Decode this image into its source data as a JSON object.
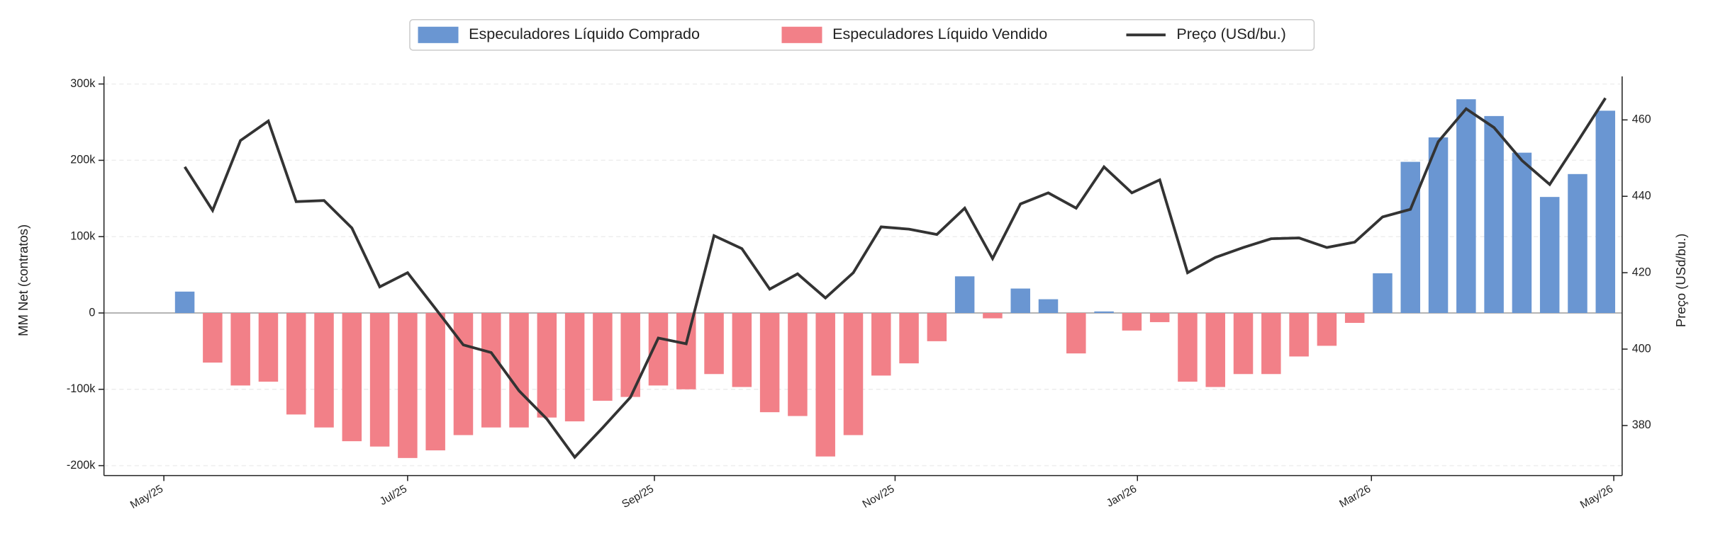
{
  "chart_data": {
    "type": "bar-line",
    "y_label": "MM Net (contratos)",
    "y2_label": "Preço (USd/bu.)",
    "categories": [
      null,
      null,
      null,
      null,
      null,
      null,
      null,
      null,
      null,
      null,
      null,
      null,
      null,
      null,
      null,
      null,
      null,
      null,
      null,
      null,
      null,
      null,
      null,
      null,
      null,
      null,
      null,
      null,
      null,
      null,
      null,
      null,
      null,
      null,
      null,
      null,
      null,
      null,
      null,
      null,
      null,
      null,
      null,
      null,
      null,
      null,
      null,
      null,
      null,
      null,
      null,
      null
    ],
    "xlim": [
      -2.9,
      51.6
    ],
    "xticks": [
      {
        "value": -0.75,
        "label": "May/25"
      },
      {
        "value": 8.0,
        "label": "Jul/25"
      },
      {
        "value": 16.86,
        "label": "Sep/25"
      },
      {
        "value": 25.5,
        "label": "Nov/25"
      },
      {
        "value": 34.2,
        "label": "Jan/26"
      },
      {
        "value": 42.6,
        "label": "Mar/26"
      },
      {
        "value": 51.3,
        "label": "May/26"
      }
    ],
    "ylim": [
      -213000,
      310000
    ],
    "yticks": [
      {
        "value": -200000,
        "label": "-200k"
      },
      {
        "value": -100000,
        "label": "-100k"
      },
      0,
      {
        "value": 100000,
        "label": "100k"
      },
      {
        "value": 200000,
        "label": "200k"
      },
      {
        "value": 300000,
        "label": "300k"
      }
    ],
    "y2lim": [
      366.9,
      471.4
    ],
    "y2ticks": [
      380,
      400,
      420,
      440,
      460
    ],
    "grid": true,
    "legend": "top",
    "series": [
      {
        "name": "Especuladores Líquido Comprado",
        "color": "#6a96d2",
        "kind": "bar",
        "values": [
          28000,
          null,
          null,
          null,
          null,
          null,
          null,
          null,
          null,
          null,
          null,
          null,
          null,
          null,
          null,
          null,
          null,
          null,
          null,
          null,
          null,
          null,
          null,
          null,
          null,
          null,
          null,
          null,
          48000,
          null,
          32000,
          18000,
          null,
          2000,
          null,
          null,
          null,
          null,
          null,
          null,
          null,
          null,
          null,
          52000,
          198000,
          230000,
          280000,
          258000,
          210000,
          152000,
          182000,
          265000
        ]
      },
      {
        "name": "Especuladores Líquido Vendido",
        "color": "#f28088",
        "kind": "bar",
        "values": [
          null,
          -65000,
          -95000,
          -90000,
          -133000,
          -150000,
          -168000,
          -175000,
          -190000,
          -180000,
          -160000,
          -150000,
          -150000,
          -137000,
          -142000,
          -115000,
          -110000,
          -95000,
          -100000,
          -80000,
          -97000,
          -130000,
          -135000,
          -188000,
          -160000,
          -82000,
          -66000,
          -37000,
          null,
          -7000,
          null,
          null,
          -53000,
          null,
          -23000,
          -12000,
          -90000,
          -97000,
          -80000,
          -80000,
          -57000,
          -43000,
          -13000,
          null,
          null,
          null,
          null,
          null,
          null,
          null,
          null,
          null
        ]
      },
      {
        "name": "Preço (USd/bu.)",
        "color": "#333333",
        "kind": "line",
        "axis": "y2",
        "values": [
          447.7,
          436.3,
          454.6,
          459.7,
          438.6,
          438.9,
          431.7,
          416.3,
          420,
          410.6,
          401.1,
          399.1,
          389.1,
          381.7,
          371.7,
          379.4,
          387.4,
          402.9,
          401.4,
          429.7,
          426.3,
          415.7,
          419.7,
          413.4,
          420,
          432,
          431.4,
          430,
          436.9,
          423.7,
          438,
          440.9,
          436.9,
          447.7,
          440.9,
          444.3,
          420,
          424,
          426.6,
          428.9,
          429.1,
          426.6,
          428,
          434.6,
          436.6,
          454.3,
          462.9,
          458,
          449.4,
          443.1,
          454.3,
          465.7
        ]
      }
    ]
  }
}
